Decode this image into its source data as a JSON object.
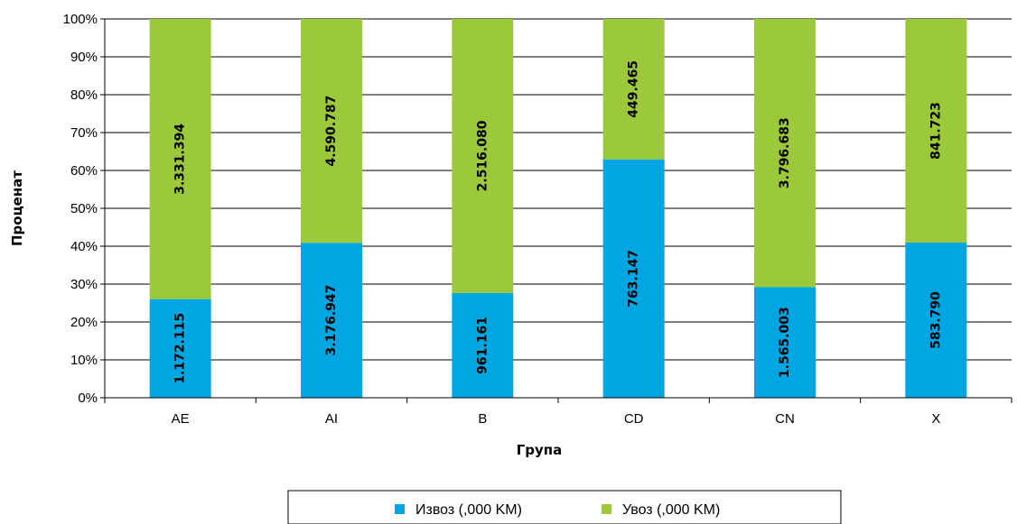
{
  "chart_data": {
    "type": "bar",
    "stacked": "percent",
    "categories": [
      "AE",
      "AI",
      "B",
      "CD",
      "CN",
      "X"
    ],
    "series": [
      {
        "name": "Извоз (,000 KM)",
        "color": "#00a6e2",
        "values": [
          1172115,
          3176947,
          961161,
          763147,
          1565003,
          583790
        ],
        "labels": [
          "1.172.115",
          "3.176.947",
          "961.161",
          "763.147",
          "1.565.003",
          "583.790"
        ]
      },
      {
        "name": "Увоз (,000 KM)",
        "color": "#9cc93b",
        "values": [
          3331394,
          4590787,
          2516080,
          449465,
          3796683,
          841723
        ],
        "labels": [
          "3.331.394",
          "4.590.787",
          "2.516.080",
          "449.465",
          "3.796.683",
          "841.723"
        ]
      }
    ],
    "xlabel": "Група",
    "ylabel": "Проценат",
    "ylim": [
      0,
      100
    ],
    "yticks": [
      "0%",
      "10%",
      "20%",
      "30%",
      "40%",
      "50%",
      "60%",
      "70%",
      "80%",
      "90%",
      "100%"
    ],
    "grid": true,
    "legend": "bottom"
  }
}
